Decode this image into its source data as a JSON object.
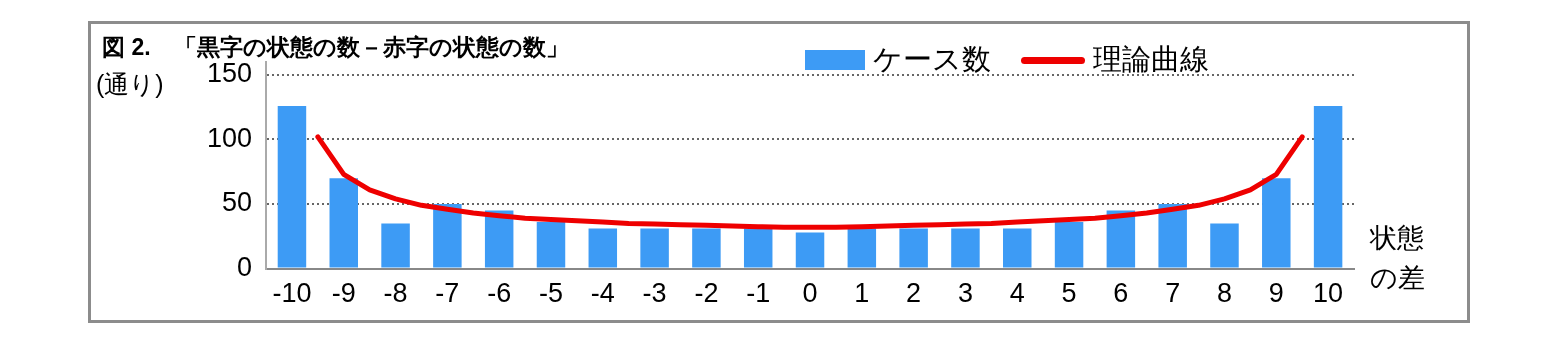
{
  "chart_data": {
    "type": "bar",
    "title": "図 2.　「黒字の状態の数－赤字の状態の数」",
    "ylabel": "(通り)",
    "xlabel": "状態の差",
    "x": [
      -10,
      -9,
      -8,
      -7,
      -6,
      -5,
      -4,
      -3,
      -2,
      -1,
      0,
      1,
      2,
      3,
      4,
      5,
      6,
      7,
      8,
      9,
      10
    ],
    "series": [
      {
        "name": "ケース数",
        "color": "#3d9bf5",
        "values": [
          126,
          70,
          35,
          50,
          45,
          36,
          31,
          31,
          31,
          31,
          28,
          31,
          31,
          31,
          31,
          36,
          45,
          50,
          35,
          70,
          126
        ]
      },
      {
        "name": "理論曲線",
        "type": "line",
        "color": "#ee0000",
        "x": [
          -9.5,
          -9,
          -8.5,
          -8,
          -7.5,
          -7,
          -6.5,
          -6,
          -5.5,
          -5,
          -4.5,
          -4,
          -3.5,
          -3,
          -2.5,
          -2,
          -1.5,
          -1,
          -0.5,
          0,
          0.5,
          1,
          1.5,
          2,
          2.5,
          3,
          3.5,
          4,
          4.5,
          5,
          5.5,
          6,
          6.5,
          7,
          7.5,
          8,
          8.5,
          9,
          9.5
        ],
        "values": [
          102,
          73,
          61,
          54,
          49,
          46,
          43,
          41,
          39,
          38,
          37,
          36,
          35,
          34.5,
          34,
          33.5,
          33,
          32.5,
          32,
          32,
          32,
          32.5,
          33,
          33.5,
          34,
          34.5,
          35,
          36,
          37,
          38,
          39,
          41,
          43,
          46,
          49,
          54,
          61,
          73,
          102
        ]
      }
    ],
    "xlim": [
      -10.5,
      10.5
    ],
    "xticks": [
      -10,
      -9,
      -8,
      -7,
      -6,
      -5,
      -4,
      -3,
      -2,
      -1,
      0,
      1,
      2,
      3,
      4,
      5,
      6,
      7,
      8,
      9,
      10
    ],
    "ylim": [
      0,
      160
    ],
    "yticks": [
      0,
      50,
      100,
      150
    ],
    "grid": "y",
    "legend": "top",
    "marker": "none",
    "line_style": "solid"
  }
}
